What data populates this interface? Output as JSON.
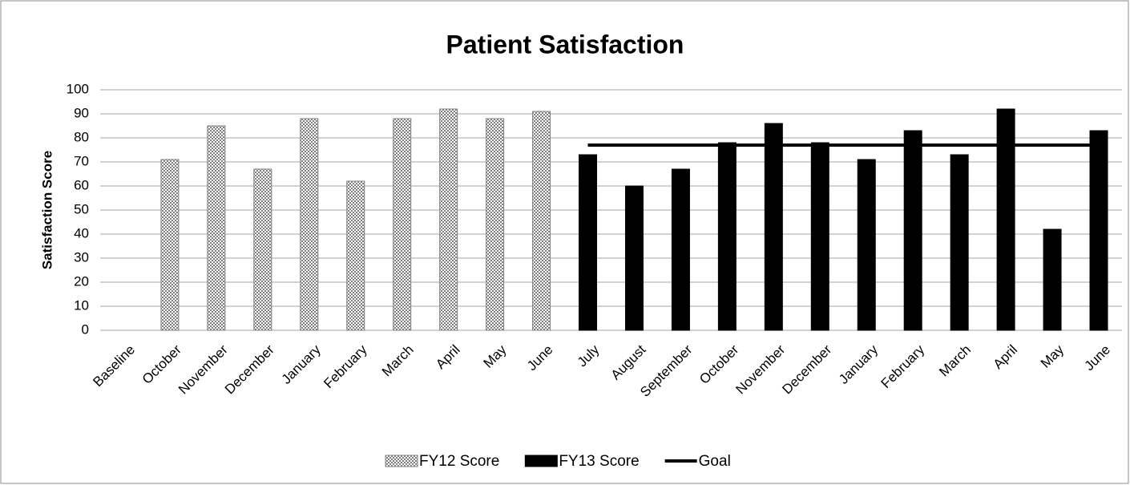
{
  "chart_data": {
    "type": "bar",
    "title": "Patient Satisfaction",
    "y_label": "Satisfaction Score",
    "categories": [
      "Baseline",
      "October",
      "November",
      "December",
      "January",
      "February",
      "March",
      "April",
      "May",
      "June",
      "July",
      "August",
      "September",
      "October",
      "November",
      "December",
      "January",
      "February",
      "March",
      "April",
      "May",
      "June"
    ],
    "series": [
      {
        "name": "FY12 Score",
        "type": "bar",
        "color": "#7f7f7f",
        "pattern": true,
        "values": [
          null,
          71,
          85,
          67,
          88,
          62,
          88,
          92,
          88,
          91,
          null,
          null,
          null,
          null,
          null,
          null,
          null,
          null,
          null,
          null,
          null,
          null
        ]
      },
      {
        "name": "FY13 Score",
        "type": "bar",
        "color": "#000000",
        "values": [
          null,
          null,
          null,
          null,
          null,
          null,
          null,
          null,
          null,
          null,
          73,
          60,
          67,
          78,
          86,
          78,
          71,
          83,
          73,
          92,
          42,
          83
        ]
      },
      {
        "name": "Goal",
        "type": "line",
        "color": "#000000",
        "values": [
          null,
          null,
          null,
          null,
          null,
          null,
          null,
          null,
          null,
          null,
          77,
          77,
          77,
          77,
          77,
          77,
          77,
          77,
          77,
          77,
          77,
          77
        ]
      }
    ],
    "ylim": [
      0,
      100
    ],
    "yticks": [
      0,
      10,
      20,
      30,
      40,
      50,
      60,
      70,
      80,
      90,
      100
    ],
    "grid": true,
    "legend": "bottom"
  }
}
